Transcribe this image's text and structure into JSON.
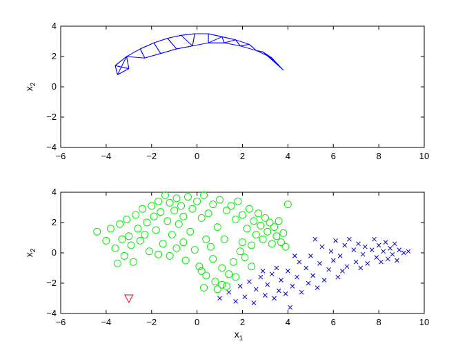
{
  "chart_data": [
    {
      "type": "line",
      "title": "",
      "xlabel": "",
      "ylabel": "x",
      "ylabel_subscript": "2",
      "xlim": [
        -6,
        10
      ],
      "ylim": [
        -4,
        4
      ],
      "xticks": [
        -6,
        -4,
        -2,
        0,
        2,
        4,
        6,
        8,
        10
      ],
      "yticks": [
        -4,
        -2,
        0,
        2,
        4
      ],
      "grid": false,
      "legend": "none",
      "series": [
        {
          "marker": "none",
          "color": "#0000ff",
          "description_only": "dense k-nearest-neighbour graph edges over the two-moons points",
          "x": [
            -3.6,
            -3.1,
            -2.5,
            -1.9,
            -1.3,
            -0.7,
            -0.1,
            0.5,
            1.1,
            1.7,
            2.3,
            2.9,
            3.4,
            3.8,
            3.3,
            2.6,
            1.9,
            1.2,
            0.5,
            -0.2,
            -0.9,
            -1.6,
            -2.3,
            -3.0,
            -3.5
          ],
          "y": [
            1.4,
            2.0,
            2.5,
            2.9,
            3.2,
            3.4,
            3.5,
            3.5,
            3.3,
            3.1,
            2.8,
            2.3,
            1.7,
            1.1,
            1.9,
            2.4,
            2.7,
            2.9,
            2.9,
            2.7,
            2.5,
            2.2,
            1.9,
            1.2,
            0.8
          ]
        }
      ]
    },
    {
      "type": "scatter",
      "title": "",
      "xlabel": "x",
      "xlabel_subscript": "1",
      "ylabel": "x",
      "ylabel_subscript": "2",
      "xlim": [
        -6,
        10
      ],
      "ylim": [
        -4,
        4
      ],
      "xticks": [
        -6,
        -4,
        -2,
        0,
        2,
        4,
        6,
        8,
        10
      ],
      "yticks": [
        -4,
        -2,
        0,
        2,
        4
      ],
      "grid": false,
      "legend": "none",
      "series": [
        {
          "marker": "circle",
          "color": "#00ee00",
          "points": [
            [
              -4.4,
              1.4
            ],
            [
              -4.0,
              0.8
            ],
            [
              -3.8,
              1.6
            ],
            [
              -3.6,
              0.3
            ],
            [
              -3.5,
              -0.7
            ],
            [
              -3.4,
              1.9
            ],
            [
              -3.3,
              0.9
            ],
            [
              -3.2,
              -0.2
            ],
            [
              -3.1,
              2.2
            ],
            [
              -3.0,
              1.1
            ],
            [
              -2.9,
              0.5
            ],
            [
              -2.8,
              -0.6
            ],
            [
              -2.7,
              2.5
            ],
            [
              -2.6,
              1.6
            ],
            [
              -2.5,
              0.8
            ],
            [
              -2.4,
              2.9
            ],
            [
              -2.3,
              1.2
            ],
            [
              -2.2,
              2.0
            ],
            [
              -2.1,
              0.1
            ],
            [
              -2.0,
              3.1
            ],
            [
              -1.9,
              2.4
            ],
            [
              -1.8,
              1.5
            ],
            [
              -1.7,
              3.4
            ],
            [
              -1.6,
              2.7
            ],
            [
              -1.5,
              0.6
            ],
            [
              -1.4,
              3.8
            ],
            [
              -1.3,
              2.1
            ],
            [
              -1.2,
              3.3
            ],
            [
              -1.1,
              1.2
            ],
            [
              -1.0,
              2.8
            ],
            [
              -0.9,
              3.6
            ],
            [
              -0.8,
              1.9
            ],
            [
              -0.7,
              3.1
            ],
            [
              -0.6,
              2.4
            ],
            [
              -0.5,
              -0.5
            ],
            [
              -0.4,
              3.7
            ],
            [
              -0.3,
              1.4
            ],
            [
              -0.2,
              2.9
            ],
            [
              -0.1,
              0.2
            ],
            [
              0.0,
              3.4
            ],
            [
              0.1,
              -0.9
            ],
            [
              0.2,
              2.3
            ],
            [
              0.3,
              3.8
            ],
            [
              0.4,
              -1.5
            ],
            [
              0.5,
              2.6
            ],
            [
              0.6,
              0.4
            ],
            [
              0.7,
              3.2
            ],
            [
              0.8,
              -1.9
            ],
            [
              0.9,
              1.7
            ],
            [
              1.0,
              3.5
            ],
            [
              1.1,
              -2.1
            ],
            [
              1.2,
              0.9
            ],
            [
              1.3,
              2.8
            ],
            [
              1.4,
              -1.4
            ],
            [
              1.5,
              3.1
            ],
            [
              1.6,
              -0.6
            ],
            [
              1.7,
              2.2
            ],
            [
              1.8,
              3.4
            ],
            [
              1.9,
              0.1
            ],
            [
              2.0,
              2.5
            ],
            [
              2.1,
              -0.3
            ],
            [
              2.2,
              1.6
            ],
            [
              2.3,
              2.9
            ],
            [
              2.4,
              0.5
            ],
            [
              2.5,
              2.1
            ],
            [
              2.6,
              1.2
            ],
            [
              2.7,
              2.6
            ],
            [
              2.8,
              1.8
            ],
            [
              2.9,
              0.9
            ],
            [
              3.0,
              2.3
            ],
            [
              3.1,
              1.4
            ],
            [
              3.2,
              2.0
            ],
            [
              3.3,
              0.6
            ],
            [
              3.4,
              1.7
            ],
            [
              3.5,
              1.1
            ],
            [
              3.6,
              2.1
            ],
            [
              3.7,
              0.7
            ],
            [
              3.8,
              1.3
            ],
            [
              3.9,
              0.4
            ],
            [
              4.0,
              3.2
            ],
            [
              -1.2,
              -0.2
            ],
            [
              -0.6,
              0.7
            ],
            [
              0.2,
              -1.2
            ],
            [
              0.7,
              -0.4
            ],
            [
              1.1,
              -1.0
            ],
            [
              0.4,
              0.9
            ],
            [
              -0.9,
              0.3
            ],
            [
              0.9,
              -2.4
            ],
            [
              0.3,
              -2.3
            ],
            [
              1.3,
              -2.2
            ],
            [
              1.7,
              -1.6
            ],
            [
              2.4,
              -0.9
            ],
            [
              -1.7,
              -0.1
            ],
            [
              2.0,
              0.7
            ]
          ]
        },
        {
          "marker": "x",
          "color": "#0000cc",
          "points": [
            [
              1.0,
              -3.0
            ],
            [
              1.4,
              -2.6
            ],
            [
              1.7,
              -3.2
            ],
            [
              1.9,
              -2.2
            ],
            [
              2.1,
              -2.9
            ],
            [
              2.3,
              -1.9
            ],
            [
              2.5,
              -3.3
            ],
            [
              2.6,
              -2.4
            ],
            [
              2.8,
              -1.6
            ],
            [
              3.0,
              -2.8
            ],
            [
              3.1,
              -2.1
            ],
            [
              3.3,
              -1.4
            ],
            [
              3.4,
              -3.0
            ],
            [
              3.6,
              -2.5
            ],
            [
              3.7,
              -1.8
            ],
            [
              3.9,
              -2.7
            ],
            [
              4.0,
              -1.2
            ],
            [
              4.1,
              -3.6
            ],
            [
              4.2,
              -2.2
            ],
            [
              4.4,
              -1.6
            ],
            [
              4.5,
              -0.6
            ],
            [
              4.6,
              -2.6
            ],
            [
              4.8,
              -1.0
            ],
            [
              4.9,
              -2.0
            ],
            [
              5.0,
              -0.2
            ],
            [
              5.1,
              -1.5
            ],
            [
              5.3,
              -2.3
            ],
            [
              5.4,
              -0.7
            ],
            [
              5.5,
              0.4
            ],
            [
              5.6,
              -1.8
            ],
            [
              5.8,
              -1.1
            ],
            [
              5.9,
              0.1
            ],
            [
              6.0,
              -0.5
            ],
            [
              6.1,
              0.8
            ],
            [
              6.2,
              -1.6
            ],
            [
              6.3,
              -0.2
            ],
            [
              6.5,
              0.5
            ],
            [
              6.6,
              -0.9
            ],
            [
              6.7,
              0.9
            ],
            [
              6.9,
              0.2
            ],
            [
              7.0,
              -0.6
            ],
            [
              7.1,
              0.6
            ],
            [
              7.3,
              -0.1
            ],
            [
              7.4,
              0.4
            ],
            [
              7.5,
              -0.7
            ],
            [
              7.7,
              0.2
            ],
            [
              7.8,
              0.9
            ],
            [
              7.9,
              -0.3
            ],
            [
              8.0,
              0.5
            ],
            [
              8.1,
              -0.6
            ],
            [
              8.2,
              0.1
            ],
            [
              8.3,
              0.7
            ],
            [
              8.4,
              -0.4
            ],
            [
              8.5,
              0.3
            ],
            [
              8.6,
              -0.1
            ],
            [
              8.7,
              0.6
            ],
            [
              8.8,
              -0.5
            ],
            [
              8.9,
              0.2
            ],
            [
              9.1,
              0.0
            ],
            [
              9.3,
              0.1
            ],
            [
              3.5,
              -1.0
            ],
            [
              4.3,
              -0.2
            ],
            [
              5.2,
              0.9
            ],
            [
              6.4,
              -1.2
            ],
            [
              7.2,
              -1.0
            ],
            [
              2.9,
              -1.2
            ]
          ]
        },
        {
          "marker": "triangle-down",
          "color": "#ff0000",
          "points": [
            [
              -3.0,
              -3.0
            ]
          ]
        }
      ]
    }
  ]
}
